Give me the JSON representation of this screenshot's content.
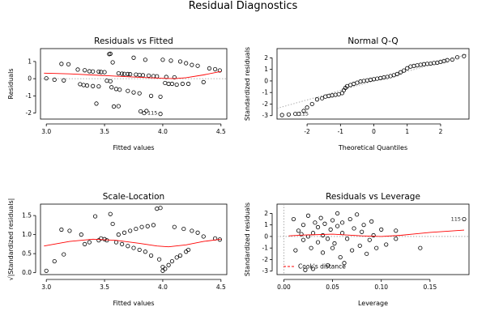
{
  "title": "Residual Diagnostics",
  "colors": {
    "smoother": "#ff0000",
    "points": "#000000",
    "reference": "#999999"
  },
  "chart_data": [
    {
      "id": "resid-fitted",
      "type": "scatter",
      "title": "Residuals vs Fitted",
      "xlabel": "Fitted values",
      "ylabel": "Residuals",
      "xlim": [
        2.95,
        4.55
      ],
      "ylim": [
        -2.35,
        1.75
      ],
      "xticks": [
        3.0,
        3.5,
        4.0,
        4.5
      ],
      "xtick_labels": [
        "3.0",
        "3.5",
        "4.0",
        "4.5"
      ],
      "yticks": [
        -2,
        -1,
        0,
        1
      ],
      "ytick_labels": [
        "-2",
        "-1",
        "0",
        "1"
      ],
      "reference_line": {
        "y": 0,
        "dotted": true
      },
      "labels": [
        "115"
      ],
      "points": [
        [
          3.0,
          0.02
        ],
        [
          3.07,
          -0.06
        ],
        [
          3.13,
          0.86
        ],
        [
          3.15,
          -0.1
        ],
        [
          3.19,
          0.84
        ],
        [
          3.27,
          0.53
        ],
        [
          3.29,
          -0.32
        ],
        [
          3.32,
          -0.37
        ],
        [
          3.33,
          0.49
        ],
        [
          3.35,
          -0.4
        ],
        [
          3.37,
          0.43
        ],
        [
          3.4,
          0.42
        ],
        [
          3.4,
          -0.43
        ],
        [
          3.43,
          -1.45
        ],
        [
          3.45,
          0.41
        ],
        [
          3.45,
          -0.45
        ],
        [
          3.47,
          0.39
        ],
        [
          3.5,
          0.38
        ],
        [
          3.52,
          -0.12
        ],
        [
          3.54,
          1.43
        ],
        [
          3.55,
          1.45
        ],
        [
          3.55,
          -0.15
        ],
        [
          3.56,
          -0.5
        ],
        [
          3.57,
          0.95
        ],
        [
          3.58,
          -1.62
        ],
        [
          3.6,
          -0.6
        ],
        [
          3.62,
          -1.6
        ],
        [
          3.62,
          0.31
        ],
        [
          3.63,
          -0.64
        ],
        [
          3.65,
          0.29
        ],
        [
          3.67,
          0.28
        ],
        [
          3.7,
          0.27
        ],
        [
          3.7,
          -0.71
        ],
        [
          3.72,
          0.26
        ],
        [
          3.75,
          -0.8
        ],
        [
          3.75,
          1.22
        ],
        [
          3.77,
          0.24
        ],
        [
          3.8,
          0.22
        ],
        [
          3.8,
          -0.85
        ],
        [
          3.81,
          -1.9
        ],
        [
          3.83,
          0.2
        ],
        [
          3.84,
          -2.0
        ],
        [
          3.85,
          1.1
        ],
        [
          3.86,
          -1.88
        ],
        [
          3.88,
          0.18
        ],
        [
          3.9,
          -1.0
        ],
        [
          3.92,
          0.15
        ],
        [
          3.95,
          0.14
        ],
        [
          3.98,
          -1.05
        ],
        [
          3.98,
          -2.05
        ],
        [
          4.0,
          1.1
        ],
        [
          4.02,
          -0.25
        ],
        [
          4.03,
          0.1
        ],
        [
          4.05,
          -0.3
        ],
        [
          4.07,
          1.05
        ],
        [
          4.08,
          -0.3
        ],
        [
          4.1,
          0.08
        ],
        [
          4.12,
          -0.35
        ],
        [
          4.15,
          1.0
        ],
        [
          4.17,
          -0.3
        ],
        [
          4.2,
          0.9
        ],
        [
          4.22,
          -0.3
        ],
        [
          4.25,
          0.8
        ],
        [
          4.3,
          0.75
        ],
        [
          4.35,
          -0.2
        ],
        [
          4.4,
          0.6
        ],
        [
          4.45,
          0.55
        ],
        [
          4.49,
          0.48
        ]
      ],
      "labeled_points": [
        {
          "label": "115",
          "x": 3.84,
          "y": -2.0
        }
      ],
      "smoother": [
        [
          2.98,
          0.32
        ],
        [
          3.2,
          0.28
        ],
        [
          3.5,
          0.18
        ],
        [
          3.8,
          0.08
        ],
        [
          4.0,
          0.02
        ],
        [
          4.1,
          0.0
        ],
        [
          4.2,
          0.06
        ],
        [
          4.35,
          0.22
        ],
        [
          4.5,
          0.42
        ]
      ]
    },
    {
      "id": "normal-qq",
      "type": "scatter",
      "title": "Normal Q-Q",
      "xlabel": "Theoretical Quantiles",
      "ylabel": "Standardized residuals",
      "xlim": [
        -2.9,
        2.85
      ],
      "ylim": [
        -3.3,
        2.8
      ],
      "xticks": [
        -2,
        -1,
        0,
        1,
        2
      ],
      "xtick_labels": [
        "-2",
        "-1",
        "0",
        "1",
        "2"
      ],
      "yticks": [
        -3,
        -2,
        -1,
        0,
        1,
        2
      ],
      "ytick_labels": [
        "-3",
        "-2",
        "-1",
        "0",
        "1",
        "2"
      ],
      "reference_line": {
        "slope": 0.82,
        "intercept": 0.0,
        "dotted": true
      },
      "labels": [
        "115"
      ],
      "points": [
        [
          -2.75,
          -2.95
        ],
        [
          -2.55,
          -2.9
        ],
        [
          -2.35,
          -2.85
        ],
        [
          -2.25,
          -2.85
        ],
        [
          -2.1,
          -2.6
        ],
        [
          -2.0,
          -2.3
        ],
        [
          -1.85,
          -2.0
        ],
        [
          -1.7,
          -1.6
        ],
        [
          -1.55,
          -1.5
        ],
        [
          -1.45,
          -1.35
        ],
        [
          -1.35,
          -1.3
        ],
        [
          -1.25,
          -1.25
        ],
        [
          -1.15,
          -1.2
        ],
        [
          -1.05,
          -1.15
        ],
        [
          -0.95,
          -1.05
        ],
        [
          -0.9,
          -0.8
        ],
        [
          -0.85,
          -0.6
        ],
        [
          -0.8,
          -0.45
        ],
        [
          -0.7,
          -0.35
        ],
        [
          -0.6,
          -0.25
        ],
        [
          -0.5,
          -0.15
        ],
        [
          -0.4,
          -0.05
        ],
        [
          -0.3,
          0.0
        ],
        [
          -0.2,
          0.05
        ],
        [
          -0.1,
          0.1
        ],
        [
          0.0,
          0.15
        ],
        [
          0.1,
          0.2
        ],
        [
          0.2,
          0.25
        ],
        [
          0.3,
          0.3
        ],
        [
          0.4,
          0.35
        ],
        [
          0.5,
          0.42
        ],
        [
          0.6,
          0.5
        ],
        [
          0.7,
          0.6
        ],
        [
          0.8,
          0.75
        ],
        [
          0.9,
          0.9
        ],
        [
          1.0,
          1.1
        ],
        [
          1.1,
          1.25
        ],
        [
          1.2,
          1.3
        ],
        [
          1.3,
          1.35
        ],
        [
          1.4,
          1.4
        ],
        [
          1.5,
          1.45
        ],
        [
          1.6,
          1.48
        ],
        [
          1.7,
          1.5
        ],
        [
          1.8,
          1.55
        ],
        [
          1.9,
          1.58
        ],
        [
          2.0,
          1.65
        ],
        [
          2.1,
          1.72
        ],
        [
          2.2,
          1.8
        ],
        [
          2.35,
          1.85
        ],
        [
          2.5,
          2.05
        ],
        [
          2.7,
          2.15
        ]
      ],
      "labeled_points": [
        {
          "label": "115",
          "x": -2.35,
          "y": -2.85
        }
      ]
    },
    {
      "id": "scale-location",
      "type": "scatter",
      "title": "Scale-Location",
      "xlabel": "Fitted values",
      "ylabel": "√|Standardized residuals|",
      "xlim": [
        2.95,
        4.55
      ],
      "ylim": [
        -0.05,
        1.8
      ],
      "xticks": [
        3.0,
        3.5,
        4.0,
        4.5
      ],
      "xtick_labels": [
        "3.0",
        "3.5",
        "4.0",
        "4.5"
      ],
      "yticks": [
        0.0,
        0.5,
        1.0,
        1.5
      ],
      "ytick_labels": [
        "0.0",
        "0.5",
        "1.0",
        "1.5"
      ],
      "labels": [],
      "points": [
        [
          3.0,
          0.05
        ],
        [
          3.07,
          0.3
        ],
        [
          3.13,
          1.13
        ],
        [
          3.15,
          0.48
        ],
        [
          3.2,
          1.1
        ],
        [
          3.3,
          1.0
        ],
        [
          3.33,
          0.75
        ],
        [
          3.37,
          0.8
        ],
        [
          3.42,
          1.48
        ],
        [
          3.45,
          0.85
        ],
        [
          3.47,
          0.9
        ],
        [
          3.5,
          0.88
        ],
        [
          3.52,
          0.85
        ],
        [
          3.55,
          1.54
        ],
        [
          3.57,
          1.28
        ],
        [
          3.6,
          0.8
        ],
        [
          3.62,
          1.0
        ],
        [
          3.65,
          0.75
        ],
        [
          3.67,
          1.05
        ],
        [
          3.7,
          0.7
        ],
        [
          3.72,
          1.1
        ],
        [
          3.75,
          0.65
        ],
        [
          3.77,
          1.15
        ],
        [
          3.8,
          0.6
        ],
        [
          3.82,
          1.2
        ],
        [
          3.85,
          0.55
        ],
        [
          3.87,
          1.22
        ],
        [
          3.9,
          0.45
        ],
        [
          3.92,
          1.25
        ],
        [
          3.95,
          1.68
        ],
        [
          3.97,
          0.35
        ],
        [
          3.98,
          1.7
        ],
        [
          4.0,
          0.15
        ],
        [
          4.0,
          0.05
        ],
        [
          4.02,
          0.1
        ],
        [
          4.05,
          0.2
        ],
        [
          4.08,
          0.3
        ],
        [
          4.1,
          1.2
        ],
        [
          4.12,
          0.4
        ],
        [
          4.15,
          0.45
        ],
        [
          4.18,
          1.15
        ],
        [
          4.2,
          0.55
        ],
        [
          4.22,
          0.6
        ],
        [
          4.25,
          1.1
        ],
        [
          4.3,
          1.05
        ],
        [
          4.35,
          0.95
        ],
        [
          4.45,
          0.9
        ],
        [
          4.49,
          0.87
        ]
      ],
      "smoother": [
        [
          2.98,
          0.7
        ],
        [
          3.2,
          0.82
        ],
        [
          3.4,
          0.88
        ],
        [
          3.6,
          0.85
        ],
        [
          3.8,
          0.77
        ],
        [
          3.95,
          0.7
        ],
        [
          4.05,
          0.68
        ],
        [
          4.2,
          0.73
        ],
        [
          4.35,
          0.82
        ],
        [
          4.5,
          0.88
        ]
      ]
    },
    {
      "id": "resid-leverage",
      "type": "scatter",
      "title": "Residuals vs Leverage",
      "xlabel": "Leverage",
      "ylabel": "Standardized residuals",
      "xlim": [
        -0.007,
        0.19
      ],
      "ylim": [
        -3.3,
        2.8
      ],
      "xticks": [
        0.0,
        0.05,
        0.1,
        0.15
      ],
      "xtick_labels": [
        "0.00",
        "0.05",
        "0.10",
        "0.15"
      ],
      "yticks": [
        -3,
        -2,
        -1,
        0,
        1,
        2
      ],
      "ytick_labels": [
        "-3",
        "-2",
        "-1",
        "0",
        "1",
        "2"
      ],
      "legend": {
        "label": "Cook's distance",
        "position": "bottom-left"
      },
      "labels": [
        "115"
      ],
      "points": [
        [
          0.01,
          1.5
        ],
        [
          0.012,
          -1.2
        ],
        [
          0.015,
          0.5
        ],
        [
          0.018,
          0.2
        ],
        [
          0.02,
          -0.3
        ],
        [
          0.02,
          1.0
        ],
        [
          0.022,
          -2.9
        ],
        [
          0.025,
          0.0
        ],
        [
          0.025,
          1.8
        ],
        [
          0.028,
          -1.0
        ],
        [
          0.03,
          0.3
        ],
        [
          0.03,
          -2.8
        ],
        [
          0.032,
          1.2
        ],
        [
          0.035,
          -0.5
        ],
        [
          0.035,
          0.8
        ],
        [
          0.038,
          1.6
        ],
        [
          0.04,
          -1.4
        ],
        [
          0.04,
          0.1
        ],
        [
          0.042,
          1.1
        ],
        [
          0.045,
          -0.2
        ],
        [
          0.045,
          -2.5
        ],
        [
          0.048,
          0.6
        ],
        [
          0.05,
          1.4
        ],
        [
          0.05,
          -1.0
        ],
        [
          0.052,
          -0.6
        ],
        [
          0.055,
          0.9
        ],
        [
          0.055,
          2.0
        ],
        [
          0.058,
          -1.8
        ],
        [
          0.06,
          0.3
        ],
        [
          0.06,
          1.2
        ],
        [
          0.062,
          -2.3
        ],
        [
          0.065,
          -0.2
        ],
        [
          0.068,
          1.5
        ],
        [
          0.07,
          -1.2
        ],
        [
          0.072,
          0.7
        ],
        [
          0.075,
          1.9
        ],
        [
          0.078,
          -0.8
        ],
        [
          0.08,
          0.4
        ],
        [
          0.082,
          1.0
        ],
        [
          0.085,
          -1.5
        ],
        [
          0.088,
          -0.3
        ],
        [
          0.09,
          1.3
        ],
        [
          0.092,
          0.1
        ],
        [
          0.095,
          -1.0
        ],
        [
          0.1,
          0.6
        ],
        [
          0.105,
          -0.7
        ],
        [
          0.115,
          0.5
        ],
        [
          0.115,
          -0.2
        ],
        [
          0.14,
          -1.0
        ],
        [
          0.185,
          1.5
        ]
      ],
      "labeled_points": [
        {
          "label": "115",
          "x": 0.185,
          "y": 1.5
        }
      ],
      "smoother": [
        [
          0.005,
          0.05
        ],
        [
          0.02,
          0.12
        ],
        [
          0.05,
          0.2
        ],
        [
          0.08,
          0.05
        ],
        [
          0.1,
          0.0
        ],
        [
          0.12,
          0.1
        ],
        [
          0.15,
          0.35
        ],
        [
          0.185,
          0.55
        ]
      ]
    }
  ]
}
